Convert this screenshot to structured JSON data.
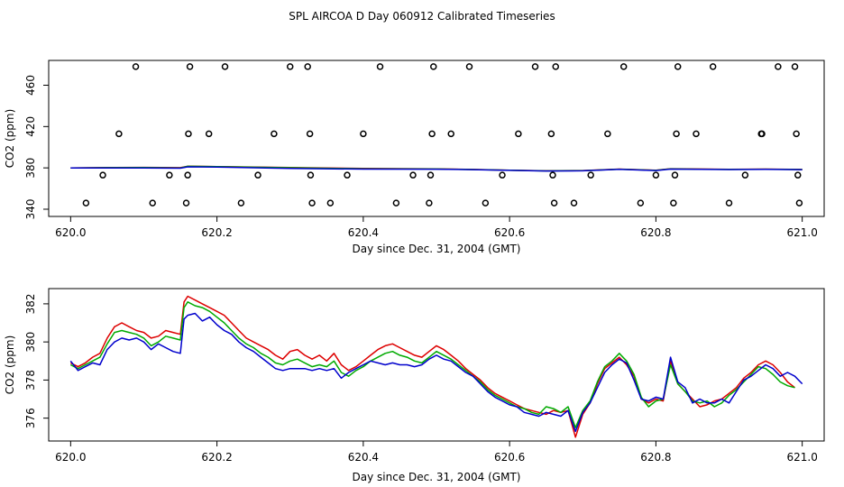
{
  "page_title": "SPL AIRCOA D  Day 060912  Calibrated Timeseries",
  "chart_data": [
    {
      "id": "top",
      "type": "line+scatter",
      "xlabel": "Day since Dec. 31, 2004 (GMT)",
      "ylabel": "CO2 (ppm)",
      "xlim": [
        619.97,
        621.03
      ],
      "ylim": [
        333,
        484
      ],
      "xticks": [
        620.0,
        620.2,
        620.4,
        620.6,
        620.8,
        621.0
      ],
      "xtick_labels": [
        "620.0",
        "620.2",
        "620.4",
        "620.6",
        "620.8",
        "621.0"
      ],
      "yticks": [
        340,
        380,
        420,
        460
      ],
      "ytick_labels": [
        "340",
        "380",
        "420",
        "460"
      ],
      "series": [
        {
          "name": "red",
          "color": "#dd0000",
          "x": [
            620.0,
            620.05,
            620.1,
            620.15,
            620.16,
            620.2,
            620.3,
            620.4,
            620.5,
            620.55,
            620.6,
            620.65,
            620.7,
            620.75,
            620.8,
            620.82,
            620.9,
            620.95,
            621.0
          ],
          "y": [
            380,
            380.3,
            380.5,
            380.2,
            381.6,
            381.3,
            380.4,
            379.4,
            379,
            378.5,
            377.8,
            377.2,
            377.4,
            378.8,
            377.8,
            379.2,
            378.6,
            378.8,
            378.5
          ]
        },
        {
          "name": "green",
          "color": "#00aa00",
          "x": [
            620.0,
            620.05,
            620.1,
            620.15,
            620.16,
            620.2,
            620.3,
            620.4,
            620.5,
            620.55,
            620.6,
            620.65,
            620.7,
            620.75,
            620.8,
            620.82,
            620.9,
            620.95,
            621.0
          ],
          "y": [
            380,
            380.2,
            380.3,
            380,
            381.5,
            381.2,
            380.1,
            379.2,
            378.9,
            378.4,
            377.7,
            377.1,
            377.3,
            378.7,
            377.6,
            379,
            378.5,
            378.7,
            378.4
          ]
        },
        {
          "name": "blue",
          "color": "#0000cc",
          "x": [
            620.0,
            620.05,
            620.1,
            620.15,
            620.16,
            620.2,
            620.3,
            620.4,
            620.5,
            620.55,
            620.6,
            620.65,
            620.7,
            620.75,
            620.8,
            620.82,
            620.9,
            620.95,
            621.0
          ],
          "y": [
            380,
            380,
            379.9,
            379.7,
            381,
            380.8,
            379.4,
            378.8,
            378.7,
            378.3,
            377.6,
            377,
            377.2,
            378.6,
            377.4,
            378.8,
            378.4,
            378.6,
            378.3
          ]
        }
      ],
      "points": {
        "x": [
          620.021,
          620.044,
          620.066,
          620.089,
          620.112,
          620.135,
          620.158,
          620.16,
          620.161,
          620.163,
          620.189,
          620.211,
          620.233,
          620.256,
          620.278,
          620.3,
          620.324,
          620.327,
          620.328,
          620.33,
          620.355,
          620.378,
          620.4,
          620.423,
          620.445,
          620.468,
          620.49,
          620.492,
          620.494,
          620.496,
          620.52,
          620.545,
          620.567,
          620.59,
          620.612,
          620.635,
          620.657,
          620.659,
          620.661,
          620.663,
          620.688,
          620.711,
          620.734,
          620.756,
          620.779,
          620.8,
          620.824,
          620.826,
          620.828,
          620.83,
          620.855,
          620.878,
          620.9,
          620.922,
          620.944,
          620.945,
          620.967,
          620.99,
          620.992,
          620.994,
          620.996
        ],
        "y": [
          346,
          373,
          413,
          478,
          346,
          373,
          346,
          373,
          413,
          478,
          413,
          478,
          346,
          373,
          413,
          478,
          478,
          413,
          373,
          346,
          346,
          373,
          413,
          478,
          346,
          373,
          346,
          373,
          413,
          478,
          413,
          478,
          346,
          373,
          413,
          478,
          413,
          373,
          346,
          478,
          346,
          373,
          413,
          478,
          346,
          373,
          346,
          373,
          413,
          478,
          413,
          478,
          346,
          373,
          413,
          413,
          478,
          478,
          413,
          373,
          346
        ]
      }
    },
    {
      "id": "bottom",
      "type": "line",
      "xlabel": "Day since Dec. 31, 2004 (GMT)",
      "ylabel": "CO2 (ppm)",
      "xlim": [
        619.97,
        621.03
      ],
      "ylim": [
        374.8,
        382.8
      ],
      "xticks": [
        620.0,
        620.2,
        620.4,
        620.6,
        620.8,
        621.0
      ],
      "xtick_labels": [
        "620.0",
        "620.2",
        "620.4",
        "620.6",
        "620.8",
        "621.0"
      ],
      "yticks": [
        376,
        378,
        380,
        382
      ],
      "ytick_labels": [
        "376",
        "378",
        "380",
        "382"
      ],
      "series": [
        {
          "name": "red",
          "color": "#dd0000",
          "x": [
            620.0,
            620.01,
            620.02,
            620.03,
            620.04,
            620.05,
            620.06,
            620.07,
            620.08,
            620.09,
            620.1,
            620.11,
            620.12,
            620.13,
            620.14,
            620.15,
            620.155,
            620.16,
            620.17,
            620.18,
            620.19,
            620.2,
            620.21,
            620.22,
            620.23,
            620.24,
            620.25,
            620.26,
            620.27,
            620.28,
            620.29,
            620.3,
            620.31,
            620.32,
            620.33,
            620.34,
            620.35,
            620.36,
            620.37,
            620.38,
            620.39,
            620.4,
            620.41,
            620.42,
            620.43,
            620.44,
            620.45,
            620.46,
            620.47,
            620.48,
            620.49,
            620.5,
            620.51,
            620.52,
            620.53,
            620.54,
            620.55,
            620.56,
            620.57,
            620.58,
            620.59,
            620.6,
            620.61,
            620.62,
            620.63,
            620.64,
            620.65,
            620.66,
            620.67,
            620.68,
            620.69,
            620.7,
            620.71,
            620.72,
            620.73,
            620.74,
            620.75,
            620.76,
            620.77,
            620.78,
            620.79,
            620.8,
            620.81,
            620.82,
            620.83,
            620.84,
            620.85,
            620.86,
            620.87,
            620.88,
            620.89,
            620.9,
            620.91,
            620.92,
            620.93,
            620.94,
            620.95,
            620.96,
            620.97,
            620.98,
            620.99
          ],
          "y": [
            378.9,
            378.7,
            378.9,
            379.2,
            379.4,
            380.2,
            380.8,
            381.0,
            380.8,
            380.6,
            380.5,
            380.2,
            380.3,
            380.6,
            380.5,
            380.4,
            382.1,
            382.4,
            382.2,
            382.0,
            381.8,
            381.6,
            381.4,
            381.0,
            380.6,
            380.2,
            380.0,
            379.8,
            379.6,
            379.3,
            379.1,
            379.5,
            379.6,
            379.3,
            379.1,
            379.3,
            379.0,
            379.4,
            378.8,
            378.5,
            378.7,
            379.0,
            379.3,
            379.6,
            379.8,
            379.9,
            379.7,
            379.5,
            379.3,
            379.2,
            379.5,
            379.8,
            379.6,
            379.3,
            379.0,
            378.6,
            378.3,
            378.0,
            377.6,
            377.3,
            377.1,
            376.9,
            376.7,
            376.5,
            376.4,
            376.3,
            376.2,
            376.4,
            376.3,
            376.4,
            375.0,
            376.2,
            376.8,
            377.8,
            378.6,
            378.9,
            379.2,
            378.8,
            378.2,
            377.0,
            376.8,
            377.0,
            376.9,
            379.0,
            377.8,
            377.4,
            377.0,
            376.6,
            376.7,
            376.9,
            377.0,
            377.3,
            377.6,
            378.1,
            378.4,
            378.8,
            379.0,
            378.8,
            378.4,
            377.9,
            377.6
          ]
        },
        {
          "name": "green",
          "color": "#00aa00",
          "x": [
            620.0,
            620.01,
            620.02,
            620.03,
            620.04,
            620.05,
            620.06,
            620.07,
            620.08,
            620.09,
            620.1,
            620.11,
            620.12,
            620.13,
            620.14,
            620.15,
            620.155,
            620.16,
            620.17,
            620.18,
            620.19,
            620.2,
            620.21,
            620.22,
            620.23,
            620.24,
            620.25,
            620.26,
            620.27,
            620.28,
            620.29,
            620.3,
            620.31,
            620.32,
            620.33,
            620.34,
            620.35,
            620.36,
            620.37,
            620.38,
            620.39,
            620.4,
            620.41,
            620.42,
            620.43,
            620.44,
            620.45,
            620.46,
            620.47,
            620.48,
            620.49,
            620.5,
            620.51,
            620.52,
            620.53,
            620.54,
            620.55,
            620.56,
            620.57,
            620.58,
            620.59,
            620.6,
            620.61,
            620.62,
            620.63,
            620.64,
            620.65,
            620.66,
            620.67,
            620.68,
            620.69,
            620.7,
            620.71,
            620.72,
            620.73,
            620.74,
            620.75,
            620.76,
            620.77,
            620.78,
            620.79,
            620.8,
            620.81,
            620.82,
            620.83,
            620.84,
            620.85,
            620.86,
            620.87,
            620.88,
            620.89,
            620.9,
            620.91,
            620.92,
            620.93,
            620.94,
            620.95,
            620.96,
            620.97,
            620.98,
            620.99
          ],
          "y": [
            378.8,
            378.6,
            378.8,
            379.0,
            379.2,
            379.9,
            380.5,
            380.6,
            380.5,
            380.4,
            380.2,
            379.8,
            380.0,
            380.3,
            380.2,
            380.1,
            381.8,
            382.1,
            381.9,
            381.8,
            381.6,
            381.3,
            381.0,
            380.6,
            380.2,
            379.9,
            379.7,
            379.4,
            379.2,
            378.9,
            378.8,
            379.0,
            379.1,
            378.9,
            378.7,
            378.8,
            378.7,
            379.0,
            378.4,
            378.2,
            378.5,
            378.7,
            379.0,
            379.2,
            379.4,
            379.5,
            379.3,
            379.2,
            379.0,
            378.9,
            379.2,
            379.5,
            379.3,
            379.1,
            378.8,
            378.5,
            378.2,
            377.9,
            377.5,
            377.2,
            377.0,
            376.8,
            376.6,
            376.5,
            376.3,
            376.2,
            376.6,
            376.5,
            376.3,
            376.6,
            375.5,
            376.4,
            376.9,
            377.9,
            378.7,
            379.0,
            379.4,
            379.0,
            378.3,
            377.1,
            376.6,
            376.9,
            377.0,
            378.8,
            377.8,
            377.4,
            376.9,
            376.8,
            376.9,
            376.6,
            376.8,
            377.2,
            377.5,
            377.9,
            378.3,
            378.7,
            378.6,
            378.3,
            377.9,
            377.7,
            377.6
          ]
        },
        {
          "name": "blue",
          "color": "#0000cc",
          "x": [
            620.0,
            620.01,
            620.02,
            620.03,
            620.04,
            620.05,
            620.06,
            620.07,
            620.08,
            620.09,
            620.1,
            620.11,
            620.12,
            620.13,
            620.14,
            620.15,
            620.155,
            620.16,
            620.17,
            620.18,
            620.19,
            620.2,
            620.21,
            620.22,
            620.23,
            620.24,
            620.25,
            620.26,
            620.27,
            620.28,
            620.29,
            620.3,
            620.31,
            620.32,
            620.33,
            620.34,
            620.35,
            620.36,
            620.37,
            620.38,
            620.39,
            620.4,
            620.41,
            620.42,
            620.43,
            620.44,
            620.45,
            620.46,
            620.47,
            620.48,
            620.49,
            620.5,
            620.51,
            620.52,
            620.53,
            620.54,
            620.55,
            620.56,
            620.57,
            620.58,
            620.59,
            620.6,
            620.61,
            620.62,
            620.63,
            620.64,
            620.65,
            620.66,
            620.67,
            620.68,
            620.69,
            620.7,
            620.71,
            620.72,
            620.73,
            620.74,
            620.75,
            620.76,
            620.77,
            620.78,
            620.79,
            620.8,
            620.81,
            620.82,
            620.83,
            620.84,
            620.85,
            620.86,
            620.87,
            620.88,
            620.89,
            620.9,
            620.91,
            620.92,
            620.93,
            620.94,
            620.95,
            620.96,
            620.97,
            620.98,
            620.99,
            621.0
          ],
          "y": [
            379.0,
            378.5,
            378.7,
            378.9,
            378.8,
            379.6,
            380.0,
            380.2,
            380.1,
            380.2,
            380.0,
            379.6,
            379.9,
            379.7,
            379.5,
            379.4,
            381.2,
            381.4,
            381.5,
            381.1,
            381.3,
            380.9,
            380.6,
            380.4,
            380.0,
            379.7,
            379.5,
            379.2,
            378.9,
            378.6,
            378.5,
            378.6,
            378.6,
            378.6,
            378.5,
            378.6,
            378.5,
            378.6,
            378.1,
            378.4,
            378.6,
            378.8,
            379.0,
            378.9,
            378.8,
            378.9,
            378.8,
            378.8,
            378.7,
            378.8,
            379.1,
            379.3,
            379.1,
            379.0,
            378.7,
            378.4,
            378.2,
            377.8,
            377.4,
            377.1,
            376.9,
            376.7,
            376.6,
            376.3,
            376.2,
            376.1,
            376.3,
            376.2,
            376.1,
            376.4,
            375.3,
            376.3,
            376.8,
            377.6,
            378.4,
            378.8,
            379.1,
            378.9,
            378.0,
            377.0,
            376.9,
            377.1,
            377.0,
            379.2,
            377.9,
            377.6,
            376.8,
            377.0,
            376.8,
            376.8,
            377.0,
            376.8,
            377.4,
            378.0,
            378.2,
            378.5,
            378.8,
            378.6,
            378.2,
            378.4,
            378.2,
            377.8
          ]
        }
      ]
    }
  ]
}
